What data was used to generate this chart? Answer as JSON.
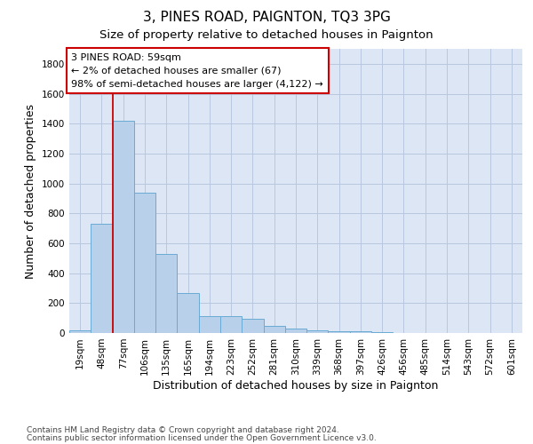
{
  "title": "3, PINES ROAD, PAIGNTON, TQ3 3PG",
  "subtitle": "Size of property relative to detached houses in Paignton",
  "xlabel": "Distribution of detached houses by size in Paignton",
  "ylabel": "Number of detached properties",
  "footer_line1": "Contains HM Land Registry data © Crown copyright and database right 2024.",
  "footer_line2": "Contains public sector information licensed under the Open Government Licence v3.0.",
  "categories": [
    "19sqm",
    "48sqm",
    "77sqm",
    "106sqm",
    "135sqm",
    "165sqm",
    "194sqm",
    "223sqm",
    "252sqm",
    "281sqm",
    "310sqm",
    "339sqm",
    "368sqm",
    "397sqm",
    "426sqm",
    "456sqm",
    "485sqm",
    "514sqm",
    "543sqm",
    "572sqm",
    "601sqm"
  ],
  "values": [
    20,
    730,
    1420,
    940,
    530,
    265,
    110,
    110,
    95,
    48,
    30,
    20,
    12,
    10,
    5,
    2,
    1,
    2,
    0,
    0,
    0
  ],
  "bar_color": "#b8d0ea",
  "bar_edge_color": "#6aaad4",
  "property_line_color": "#cc0000",
  "property_line_x": 1.5,
  "annotation_text": "3 PINES ROAD: 59sqm\n← 2% of detached houses are smaller (67)\n98% of semi-detached houses are larger (4,122) →",
  "annotation_box_color": "#ffffff",
  "annotation_box_edge_color": "#cc0000",
  "ylim": [
    0,
    1900
  ],
  "yticks": [
    0,
    200,
    400,
    600,
    800,
    1000,
    1200,
    1400,
    1600,
    1800
  ],
  "ax_facecolor": "#dce6f5",
  "background_color": "#ffffff",
  "grid_color": "#b8c8de",
  "title_fontsize": 11,
  "subtitle_fontsize": 9.5,
  "axis_label_fontsize": 9,
  "tick_fontsize": 7.5,
  "annotation_fontsize": 8,
  "footer_fontsize": 6.5
}
